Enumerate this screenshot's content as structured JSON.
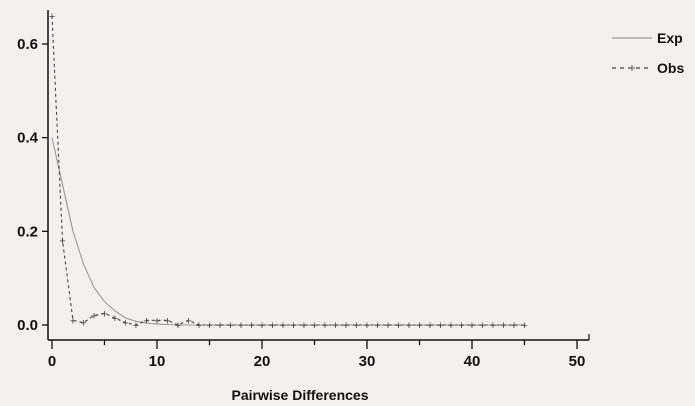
{
  "chart_data": {
    "type": "line",
    "title": "",
    "xlabel": "Pairwise Differences",
    "ylabel": "",
    "xlim": [
      0,
      50
    ],
    "ylim": [
      0,
      0.7
    ],
    "xticks": [
      "0",
      "10",
      "20",
      "30",
      "40",
      "50"
    ],
    "yticks": [
      "0.0",
      "0.2",
      "0.4",
      "0.6"
    ],
    "legend_placement": "right",
    "grid": false,
    "series": [
      {
        "name": "Exp",
        "style": "solid",
        "color": "#999999",
        "x": [
          0,
          1,
          2,
          3,
          4,
          5,
          6,
          7,
          8,
          9,
          10,
          11,
          12,
          13,
          14,
          15,
          16,
          17,
          18,
          19,
          20,
          21,
          22,
          23,
          24,
          25,
          26,
          27,
          28,
          29,
          30,
          31,
          32,
          33,
          34,
          35,
          36,
          37,
          38,
          39,
          40,
          41,
          42,
          43,
          44,
          45
        ],
        "y": [
          0.4,
          0.3,
          0.2,
          0.13,
          0.08,
          0.05,
          0.03,
          0.015,
          0.008,
          0.004,
          0.002,
          0.001,
          0,
          0,
          0,
          0,
          0,
          0,
          0,
          0,
          0,
          0,
          0,
          0,
          0,
          0,
          0,
          0,
          0,
          0,
          0,
          0,
          0,
          0,
          0,
          0,
          0,
          0,
          0,
          0,
          0,
          0,
          0,
          0,
          0,
          0
        ]
      },
      {
        "name": "Obs",
        "style": "dashed",
        "color": "#444444",
        "x": [
          0,
          1,
          2,
          3,
          4,
          5,
          6,
          7,
          8,
          9,
          10,
          11,
          12,
          13,
          14,
          15,
          16,
          17,
          18,
          19,
          20,
          21,
          22,
          23,
          24,
          25,
          26,
          27,
          28,
          29,
          30,
          31,
          32,
          33,
          34,
          35,
          36,
          37,
          38,
          39,
          40,
          41,
          42,
          43,
          44,
          45
        ],
        "y": [
          0.66,
          0.18,
          0.01,
          0.005,
          0.02,
          0.025,
          0.015,
          0.005,
          0.0,
          0.01,
          0.01,
          0.01,
          0.0,
          0.01,
          0.0,
          0.0,
          0.0,
          0.0,
          0.0,
          0.0,
          0.0,
          0.0,
          0.0,
          0.0,
          0.0,
          0.0,
          0.0,
          0.0,
          0.0,
          0.0,
          0.0,
          0.0,
          0.0,
          0.0,
          0.0,
          0.0,
          0.0,
          0.0,
          0.0,
          0.0,
          0.0,
          0.0,
          0.0,
          0.0,
          0.0,
          0.0
        ]
      }
    ]
  }
}
